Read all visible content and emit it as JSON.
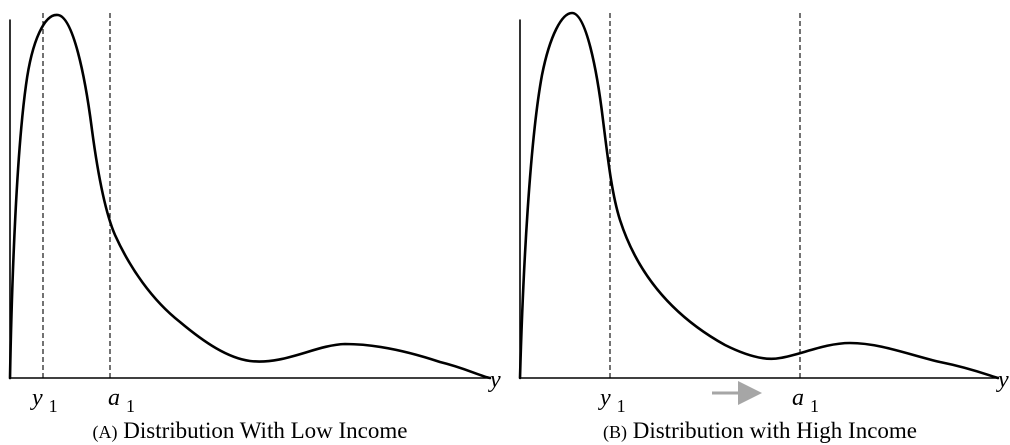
{
  "colors": {
    "curve": "#000000",
    "marker": "#000000",
    "shift_arrow": "#a6a6a6"
  },
  "panels": [
    {
      "id": "low",
      "caption_tag": "(A)",
      "caption_text": " Distribution With Low Income",
      "axis_label": "y",
      "markers": [
        {
          "symbol": "y",
          "subscript": "1"
        },
        {
          "symbol": "a",
          "subscript": "1"
        }
      ],
      "shift_arrow": false
    },
    {
      "id": "high",
      "caption_tag": "(B)",
      "caption_text": " Distribution with High Income",
      "axis_label": "y",
      "markers": [
        {
          "symbol": "y",
          "subscript": "1"
        },
        {
          "symbol": "a",
          "subscript": "1"
        }
      ],
      "shift_arrow": true,
      "shift_arrow_icon": "right-arrow-icon"
    }
  ]
}
